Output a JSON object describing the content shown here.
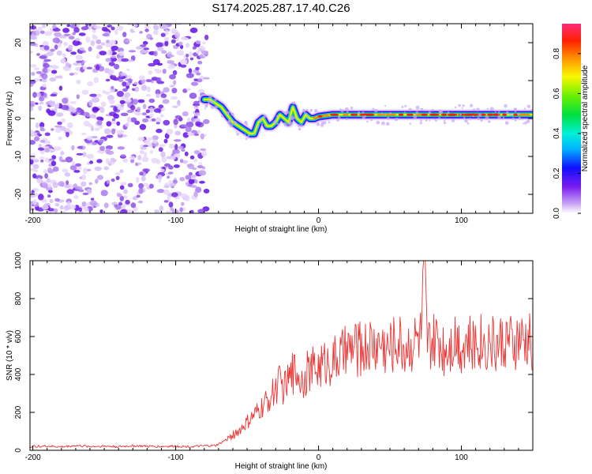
{
  "title": "S174.2025.287.17.40.C26",
  "chart_data": [
    {
      "type": "heatmap",
      "name": "spectrogram",
      "xlabel": "Height of straight line (km)",
      "ylabel": "Frequency (Hz)",
      "xlim": [
        -202,
        150
      ],
      "ylim": [
        -25,
        25
      ],
      "xticks": [
        -200,
        -100,
        0,
        100
      ],
      "yticks": [
        -20,
        -10,
        0,
        10,
        20
      ],
      "noise_region_x": [
        -202,
        -78
      ],
      "ridge_x": [
        -80,
        -76,
        -72,
        -68,
        -64,
        -60,
        -56,
        -52,
        -48,
        -45,
        -42,
        -39,
        -36,
        -33,
        -30,
        -27,
        -24,
        -21,
        -18,
        -15,
        -12,
        -9,
        -6,
        -3,
        0,
        10,
        20,
        30,
        40,
        50,
        60,
        70,
        80,
        90,
        100,
        110,
        120,
        130,
        140,
        150
      ],
      "ridge_freq_hz": [
        5,
        5,
        4,
        3,
        1,
        -1,
        -2,
        -3,
        -4,
        -4,
        -1,
        0,
        -2,
        -2,
        -1,
        1,
        0,
        -1,
        3,
        0,
        -1,
        1,
        0,
        0,
        0.5,
        1,
        1,
        1,
        1,
        1,
        1,
        1,
        1,
        1,
        1,
        1,
        1,
        1,
        1,
        1
      ],
      "colorbar": {
        "label": "Normalized spectral amplitude",
        "ticks": [
          0.0,
          0.2,
          0.4,
          0.6,
          0.8
        ],
        "range": [
          0,
          0.95
        ]
      }
    },
    {
      "type": "line",
      "name": "snr",
      "xlabel": "Height of straight line (km)",
      "ylabel": "SNR (10 * v/v)",
      "xlim": [
        -202,
        150
      ],
      "ylim": [
        0,
        1000
      ],
      "xticks": [
        -200,
        -100,
        0,
        100
      ],
      "yticks": [
        0,
        200,
        400,
        600,
        800,
        1000
      ],
      "series": [
        {
          "name": "SNR",
          "color": "#ee3333",
          "x": [
            -202,
            -190,
            -180,
            -170,
            -160,
            -150,
            -140,
            -130,
            -120,
            -110,
            -100,
            -90,
            -80,
            -72,
            -68,
            -64,
            -60,
            -56,
            -52,
            -48,
            -44,
            -40,
            -36,
            -32,
            -30,
            -28,
            -24,
            -20,
            -16,
            -12,
            -8,
            -4,
            0,
            4,
            8,
            12,
            16,
            20,
            24,
            28,
            32,
            36,
            40,
            44,
            48,
            52,
            56,
            60,
            64,
            68,
            72,
            74,
            76,
            80,
            84,
            88,
            92,
            96,
            100,
            104,
            108,
            112,
            116,
            120,
            124,
            128,
            132,
            136,
            140,
            144,
            148,
            150
          ],
          "y": [
            20,
            22,
            18,
            25,
            20,
            22,
            19,
            24,
            21,
            20,
            22,
            19,
            23,
            25,
            40,
            60,
            80,
            100,
            130,
            160,
            190,
            220,
            260,
            300,
            330,
            360,
            330,
            380,
            430,
            370,
            410,
            430,
            440,
            460,
            470,
            480,
            500,
            520,
            540,
            530,
            540,
            560,
            550,
            570,
            530,
            560,
            580,
            540,
            560,
            580,
            600,
            1000,
            550,
            560,
            580,
            540,
            570,
            600,
            560,
            580,
            540,
            600,
            560,
            580,
            550,
            570,
            590,
            540,
            580,
            560,
            580,
            560
          ]
        }
      ]
    }
  ]
}
